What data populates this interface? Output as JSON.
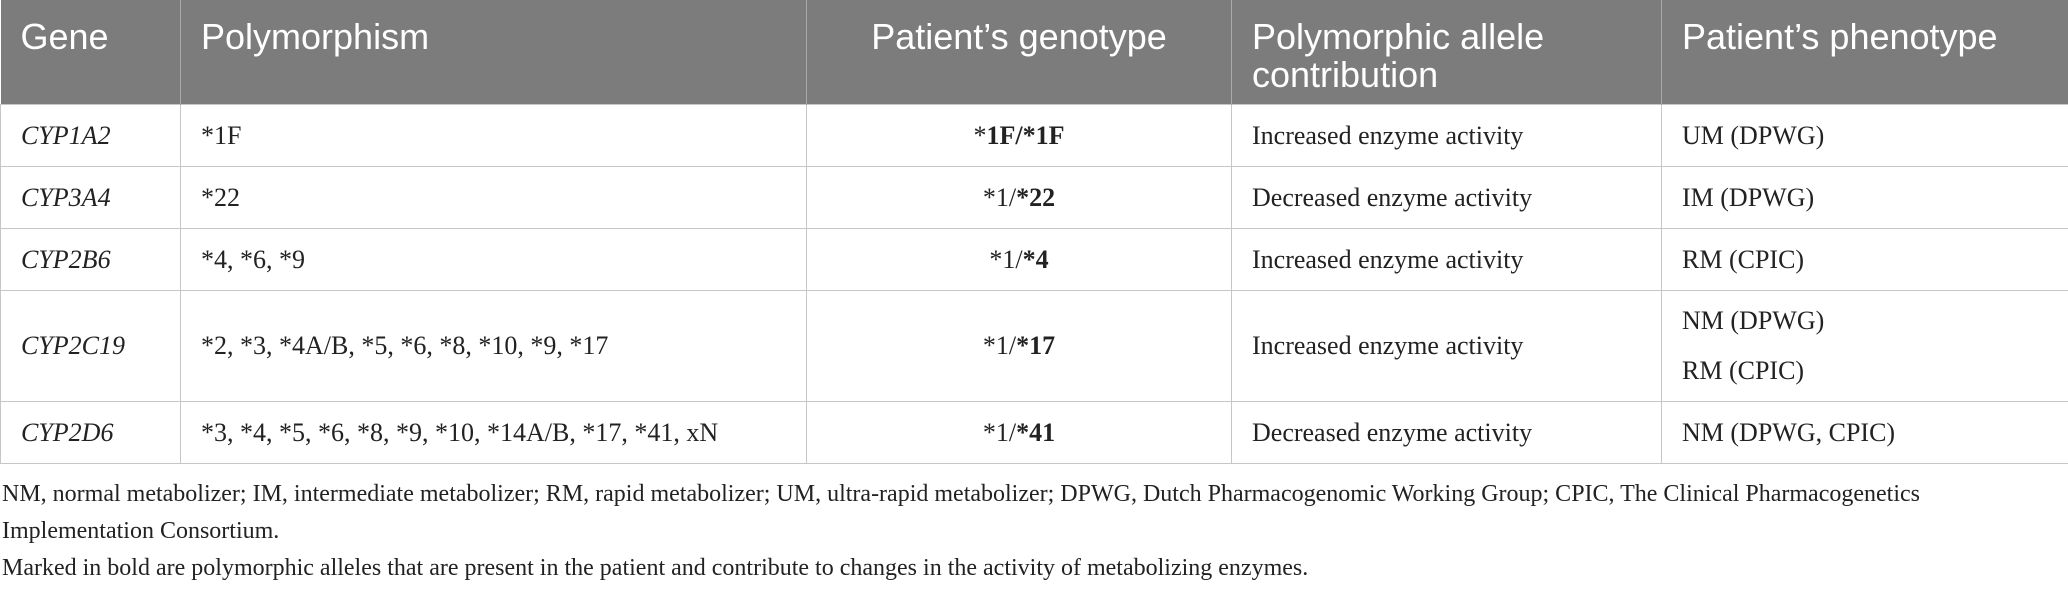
{
  "table": {
    "headers": [
      "Gene",
      "Polymorphism",
      "Patient’s genotype",
      "Polymorphic allele contribution",
      "Patient’s phenotype"
    ],
    "rows": [
      {
        "gene": "CYP1A2",
        "polymorphism": "*1F",
        "genotype_plain": "*",
        "genotype_bold": "1F/*1F",
        "contribution": "Increased enzyme activity",
        "phenotype": [
          "UM (DPWG)"
        ]
      },
      {
        "gene": "CYP3A4",
        "polymorphism": "*22",
        "genotype_plain": "*1/",
        "genotype_bold": "*22",
        "contribution": "Decreased enzyme activity",
        "phenotype": [
          "IM (DPWG)"
        ]
      },
      {
        "gene": "CYP2B6",
        "polymorphism": "*4, *6, *9",
        "genotype_plain": "*1/",
        "genotype_bold": "*4",
        "contribution": "Increased enzyme activity",
        "phenotype": [
          "RM (CPIC)"
        ]
      },
      {
        "gene": "CYP2C19",
        "polymorphism": "*2, *3, *4A/B, *5, *6, *8, *10, *9, *17",
        "genotype_plain": "*1/",
        "genotype_bold": "*17",
        "contribution": "Increased enzyme activity",
        "phenotype": [
          "NM (DPWG)",
          "RM (CPIC)"
        ]
      },
      {
        "gene": "CYP2D6",
        "polymorphism": "*3, *4, *5, *6, *8, *9, *10, *14A/B, *17, *41, xN",
        "genotype_plain": "*1/",
        "genotype_bold": "*41",
        "contribution": "Decreased enzyme activity",
        "phenotype": [
          "NM (DPWG, CPIC)"
        ]
      }
    ]
  },
  "notes": {
    "abbreviations": "NM, normal metabolizer; IM, intermediate metabolizer; RM, rapid metabolizer; UM, ultra-rapid metabolizer; DPWG, Dutch Pharmacogenomic Working Group; CPIC, The Clinical Pharmacogenetics Implementation Consortium.",
    "bold_note": "Marked in bold are polymorphic alleles that are present in the patient and contribute to changes in the activity of metabolizing enzymes."
  },
  "colors": {
    "header_bg": "#7b7c7b",
    "header_text": "#ffffff",
    "grid": "#c6c6c6"
  }
}
